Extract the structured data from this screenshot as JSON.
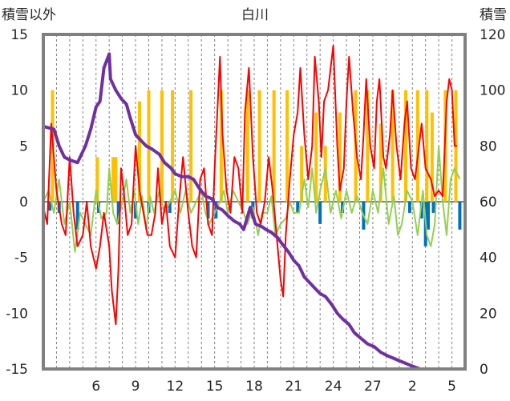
{
  "chart_data": {
    "type": "line",
    "title": "白川",
    "ylabel_left": "積雪以外",
    "ylabel_right": "積雪",
    "ylim_left": [
      -15,
      15
    ],
    "ylim_right": [
      0,
      120
    ],
    "left_ticks": [
      "15",
      "10",
      "5",
      "0",
      "-5",
      "-10",
      "-15"
    ],
    "right_ticks": [
      "120",
      "100",
      "80",
      "60",
      "40",
      "20",
      "0"
    ],
    "x_tick_labels": [
      "6",
      "9",
      "12",
      "15",
      "18",
      "21",
      "24",
      "27",
      "2",
      "5"
    ],
    "x_tick_positions": [
      4,
      7,
      10,
      13,
      16,
      19,
      22,
      25,
      28,
      31
    ],
    "xlim": [
      0,
      32
    ],
    "grid": "vertical-dashed-daily",
    "colors": {
      "snow_depth": "#7030a0",
      "temperature": "#ff0000",
      "sunshine": "#ffc000",
      "precipitation": "#0070c0",
      "snow_change": "#92d050",
      "frame": "#808080"
    },
    "series": [
      {
        "key": "snow_depth",
        "axis": "right",
        "points": [
          [
            0,
            87
          ],
          [
            0.8,
            86
          ],
          [
            1.2,
            80
          ],
          [
            1.6,
            76
          ],
          [
            2.0,
            75
          ],
          [
            2.6,
            74
          ],
          [
            3.2,
            80
          ],
          [
            3.6,
            86
          ],
          [
            4.0,
            94
          ],
          [
            4.3,
            96
          ],
          [
            4.6,
            108
          ],
          [
            5.0,
            113
          ],
          [
            5.1,
            104
          ],
          [
            5.5,
            100
          ],
          [
            5.9,
            97
          ],
          [
            6.3,
            95
          ],
          [
            6.6,
            90
          ],
          [
            7.0,
            84
          ],
          [
            7.4,
            82
          ],
          [
            7.8,
            80
          ],
          [
            8.2,
            79
          ],
          [
            8.8,
            77
          ],
          [
            9.2,
            74
          ],
          [
            9.7,
            72
          ],
          [
            10.0,
            70
          ],
          [
            10.5,
            69
          ],
          [
            11.0,
            69
          ],
          [
            11.4,
            68
          ],
          [
            11.8,
            65
          ],
          [
            12.3,
            62
          ],
          [
            12.8,
            61
          ],
          [
            13.2,
            58
          ],
          [
            13.6,
            57
          ],
          [
            14.0,
            55
          ],
          [
            14.5,
            53
          ],
          [
            14.9,
            52
          ],
          [
            15.2,
            50
          ],
          [
            15.7,
            58
          ],
          [
            16.1,
            52
          ],
          [
            16.6,
            51
          ],
          [
            16.9,
            50
          ],
          [
            17.3,
            49
          ],
          [
            17.8,
            47
          ],
          [
            18.1,
            45
          ],
          [
            18.6,
            42
          ],
          [
            19.0,
            39
          ],
          [
            19.4,
            37
          ],
          [
            19.8,
            33
          ],
          [
            20.2,
            31
          ],
          [
            20.6,
            29
          ],
          [
            21.0,
            27
          ],
          [
            21.4,
            26
          ],
          [
            21.9,
            23
          ],
          [
            22.3,
            20
          ],
          [
            22.7,
            18
          ],
          [
            23.2,
            16
          ],
          [
            23.6,
            13
          ],
          [
            24.1,
            11
          ],
          [
            24.6,
            9
          ],
          [
            25.1,
            8
          ],
          [
            25.6,
            6
          ],
          [
            26.0,
            5
          ],
          [
            26.5,
            4
          ],
          [
            27.0,
            3
          ],
          [
            27.5,
            2
          ],
          [
            28.0,
            1
          ],
          [
            28.6,
            0
          ],
          [
            29.0,
            0
          ],
          [
            31.6,
            0
          ]
        ]
      },
      {
        "key": "temperature",
        "axis": "left",
        "points": [
          [
            0,
            -0.5
          ],
          [
            0.3,
            -2
          ],
          [
            0.6,
            7
          ],
          [
            1.0,
            1
          ],
          [
            1.4,
            -2
          ],
          [
            1.7,
            -3
          ],
          [
            2.0,
            4
          ],
          [
            2.3,
            -1
          ],
          [
            2.6,
            -4
          ],
          [
            3.0,
            -3
          ],
          [
            3.3,
            0
          ],
          [
            3.6,
            -4
          ],
          [
            4.0,
            -6
          ],
          [
            4.3,
            -4
          ],
          [
            4.6,
            -1
          ],
          [
            5.0,
            -4
          ],
          [
            5.2,
            -8
          ],
          [
            5.5,
            -11
          ],
          [
            5.7,
            -6
          ],
          [
            5.9,
            3
          ],
          [
            6.1,
            1
          ],
          [
            6.4,
            -3
          ],
          [
            6.7,
            -2
          ],
          [
            7.0,
            5
          ],
          [
            7.3,
            1
          ],
          [
            7.6,
            -1
          ],
          [
            7.9,
            -3
          ],
          [
            8.2,
            -3
          ],
          [
            8.5,
            -1
          ],
          [
            8.7,
            3
          ],
          [
            9.0,
            -2
          ],
          [
            9.3,
            0
          ],
          [
            9.6,
            -4
          ],
          [
            10.0,
            -5
          ],
          [
            10.3,
            0
          ],
          [
            10.6,
            4
          ],
          [
            11.0,
            -1
          ],
          [
            11.3,
            -4
          ],
          [
            11.6,
            -5
          ],
          [
            11.9,
            2
          ],
          [
            12.2,
            3
          ],
          [
            12.5,
            -2
          ],
          [
            12.8,
            -3
          ],
          [
            13.0,
            3
          ],
          [
            13.2,
            8
          ],
          [
            13.4,
            13
          ],
          [
            13.6,
            6
          ],
          [
            13.9,
            1
          ],
          [
            14.2,
            -1
          ],
          [
            14.5,
            4
          ],
          [
            14.8,
            3
          ],
          [
            15.1,
            -1
          ],
          [
            15.3,
            8
          ],
          [
            15.6,
            12
          ],
          [
            15.9,
            4
          ],
          [
            16.2,
            -1
          ],
          [
            16.5,
            -2
          ],
          [
            16.8,
            0
          ],
          [
            17.1,
            4
          ],
          [
            17.4,
            1
          ],
          [
            17.7,
            -3
          ],
          [
            18.0,
            -7
          ],
          [
            18.2,
            -8.5
          ],
          [
            18.4,
            -3
          ],
          [
            18.7,
            2
          ],
          [
            19.0,
            6
          ],
          [
            19.3,
            8
          ],
          [
            19.5,
            12
          ],
          [
            19.8,
            6
          ],
          [
            20.1,
            2
          ],
          [
            20.4,
            5
          ],
          [
            20.6,
            13
          ],
          [
            20.9,
            9
          ],
          [
            21.1,
            4
          ],
          [
            21.3,
            9
          ],
          [
            21.6,
            10
          ],
          [
            22.0,
            14
          ],
          [
            22.3,
            5
          ],
          [
            22.5,
            1
          ],
          [
            22.8,
            3
          ],
          [
            23.0,
            9
          ],
          [
            23.2,
            13
          ],
          [
            23.5,
            8
          ],
          [
            23.8,
            4
          ],
          [
            24.1,
            2
          ],
          [
            24.3,
            6
          ],
          [
            24.5,
            11
          ],
          [
            24.8,
            5
          ],
          [
            25.1,
            3
          ],
          [
            25.3,
            9
          ],
          [
            25.5,
            11
          ],
          [
            25.8,
            4
          ],
          [
            26.0,
            3
          ],
          [
            26.3,
            6
          ],
          [
            26.5,
            10
          ],
          [
            26.8,
            5
          ],
          [
            27.1,
            2
          ],
          [
            27.4,
            7
          ],
          [
            27.6,
            9
          ],
          [
            27.9,
            3
          ],
          [
            28.2,
            2
          ],
          [
            28.5,
            5
          ],
          [
            28.7,
            7
          ],
          [
            29.0,
            3
          ],
          [
            29.4,
            2
          ],
          [
            29.7,
            0.5
          ],
          [
            30.0,
            1
          ],
          [
            30.3,
            0.5
          ],
          [
            30.6,
            9
          ],
          [
            30.8,
            11
          ],
          [
            31.0,
            10
          ],
          [
            31.2,
            5
          ],
          [
            31.4,
            5
          ]
        ]
      },
      {
        "key": "sunshine",
        "axis": "left",
        "type": "bar",
        "points": [
          [
            0.7,
            10
          ],
          [
            4.1,
            4
          ],
          [
            5.3,
            4
          ],
          [
            5.5,
            4
          ],
          [
            7.3,
            9
          ],
          [
            8.0,
            10
          ],
          [
            9.0,
            10
          ],
          [
            9.8,
            10
          ],
          [
            11.2,
            10
          ],
          [
            13.5,
            10
          ],
          [
            15.5,
            10
          ],
          [
            16.4,
            10
          ],
          [
            17.5,
            10
          ],
          [
            18.5,
            10
          ],
          [
            19.6,
            5
          ],
          [
            20.7,
            8
          ],
          [
            21.4,
            5
          ],
          [
            22.5,
            8
          ],
          [
            23.7,
            10
          ],
          [
            24.6,
            10
          ],
          [
            25.6,
            7
          ],
          [
            26.5,
            10
          ],
          [
            27.5,
            10
          ],
          [
            28.4,
            10
          ],
          [
            29.1,
            10
          ],
          [
            29.5,
            8
          ],
          [
            30.5,
            10
          ],
          [
            31.3,
            10
          ]
        ]
      },
      {
        "key": "precipitation",
        "axis": "left",
        "type": "bar",
        "points": [
          [
            0.5,
            -0.8
          ],
          [
            1.2,
            -1
          ],
          [
            2.6,
            -2.5
          ],
          [
            4.2,
            -1
          ],
          [
            5.7,
            -2
          ],
          [
            7.0,
            -1.5
          ],
          [
            8.0,
            -1
          ],
          [
            9.6,
            -1
          ],
          [
            12.5,
            -1.5
          ],
          [
            13.1,
            -1.5
          ],
          [
            15.9,
            -1.5
          ],
          [
            19.3,
            -1
          ],
          [
            21.0,
            -2
          ],
          [
            22.7,
            -1
          ],
          [
            24.3,
            -2.5
          ],
          [
            27.8,
            -1
          ],
          [
            28.7,
            -1.5
          ],
          [
            29.0,
            -4
          ],
          [
            29.2,
            -2.5
          ],
          [
            29.6,
            -1
          ],
          [
            31.6,
            -2.5
          ]
        ]
      },
      {
        "key": "snow_change",
        "axis": "left",
        "points": [
          [
            0,
            0
          ],
          [
            0.4,
            1
          ],
          [
            0.8,
            -1
          ],
          [
            1.2,
            2
          ],
          [
            1.6,
            -2
          ],
          [
            2.0,
            0
          ],
          [
            2.4,
            -4.5
          ],
          [
            2.8,
            -1
          ],
          [
            3.2,
            -2
          ],
          [
            3.6,
            -3
          ],
          [
            4.0,
            1
          ],
          [
            4.4,
            -1.5
          ],
          [
            4.8,
            -1
          ],
          [
            5.0,
            3
          ],
          [
            5.3,
            -1
          ],
          [
            5.6,
            -2
          ],
          [
            6.0,
            0
          ],
          [
            6.3,
            2
          ],
          [
            6.6,
            -1
          ],
          [
            6.9,
            1
          ],
          [
            7.2,
            -2
          ],
          [
            7.5,
            0.5
          ],
          [
            7.8,
            -2.5
          ],
          [
            8.1,
            0.5
          ],
          [
            8.4,
            -1
          ],
          [
            8.8,
            1
          ],
          [
            9.2,
            -1
          ],
          [
            9.6,
            0
          ],
          [
            10.0,
            1
          ],
          [
            10.4,
            -1
          ],
          [
            10.8,
            1
          ],
          [
            11.2,
            -1
          ],
          [
            11.6,
            0
          ],
          [
            12.0,
            1
          ],
          [
            12.3,
            -1
          ],
          [
            12.6,
            -2
          ],
          [
            13.0,
            -1
          ],
          [
            13.4,
            0
          ],
          [
            13.7,
            1
          ],
          [
            14.0,
            -1
          ],
          [
            14.4,
            1
          ],
          [
            14.8,
            0
          ],
          [
            15.2,
            -1
          ],
          [
            15.5,
            -2
          ],
          [
            15.9,
            -0.5
          ],
          [
            16.3,
            -3
          ],
          [
            16.6,
            -1
          ],
          [
            17.0,
            -1
          ],
          [
            17.3,
            0.5
          ],
          [
            17.6,
            -3
          ],
          [
            18.0,
            -2
          ],
          [
            18.4,
            -1.5
          ],
          [
            18.7,
            0
          ],
          [
            19.0,
            -1
          ],
          [
            19.4,
            -1
          ],
          [
            19.8,
            2
          ],
          [
            20.1,
            -0.5
          ],
          [
            20.4,
            3
          ],
          [
            20.7,
            -1
          ],
          [
            21.0,
            1
          ],
          [
            21.4,
            3
          ],
          [
            21.8,
            -1
          ],
          [
            22.2,
            1
          ],
          [
            22.6,
            -1.5
          ],
          [
            23.0,
            1
          ],
          [
            23.4,
            -1
          ],
          [
            23.8,
            0.5
          ],
          [
            24.2,
            -1
          ],
          [
            24.6,
            -2
          ],
          [
            25.0,
            1
          ],
          [
            25.4,
            -1
          ],
          [
            25.8,
            3
          ],
          [
            26.2,
            -2
          ],
          [
            26.6,
            0.5
          ],
          [
            26.9,
            -3
          ],
          [
            27.2,
            -2
          ],
          [
            27.6,
            1
          ],
          [
            28.0,
            0
          ],
          [
            28.4,
            -3
          ],
          [
            28.8,
            1
          ],
          [
            29.1,
            -3
          ],
          [
            29.4,
            -4
          ],
          [
            29.7,
            -2
          ],
          [
            30.0,
            5
          ],
          [
            30.3,
            0
          ],
          [
            30.6,
            -3
          ],
          [
            30.9,
            2
          ],
          [
            31.2,
            3
          ],
          [
            31.6,
            2
          ]
        ]
      }
    ]
  }
}
